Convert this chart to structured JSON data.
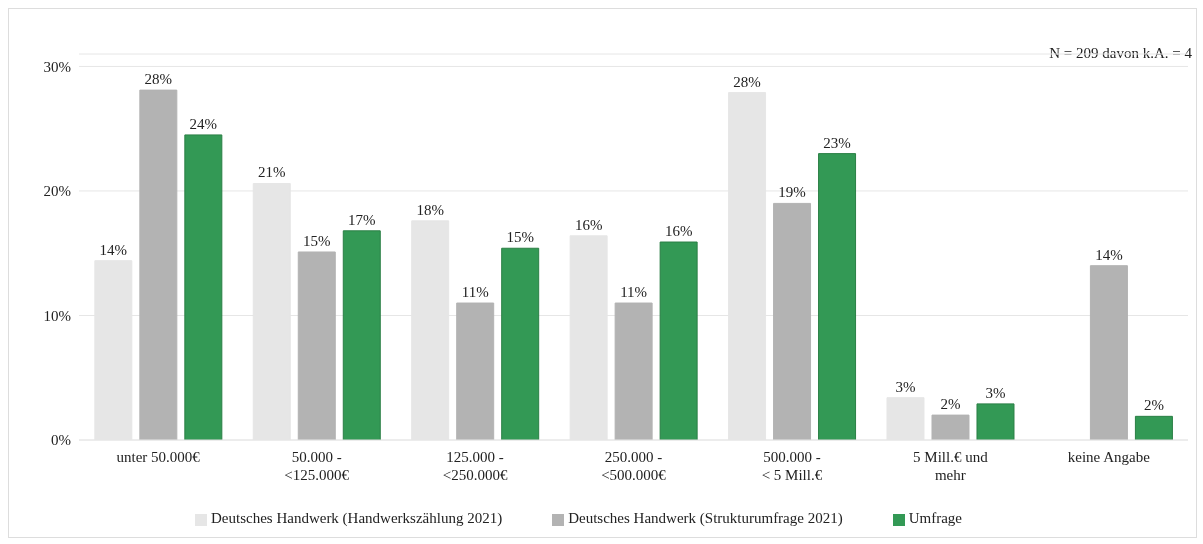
{
  "chart_data": {
    "type": "bar",
    "categories": [
      "unter 50.000€",
      "50.000 -\n<125.000€",
      "125.000 -\n<250.000€",
      "250.000 -\n<500.000€",
      "500.000 -\n< 5 Mill.€",
      "5 Mill.€ und\nmehr",
      "keine Angabe"
    ],
    "series": [
      {
        "name": "Deutsches Handwerk (Handwerkszählung 2021)",
        "color": "#e6e6e6",
        "values": [
          14.4,
          20.6,
          17.6,
          16.4,
          27.9,
          3.4,
          null
        ],
        "value_labels": [
          "14%",
          "21%",
          "18%",
          "16%",
          "28%",
          "3%",
          null
        ]
      },
      {
        "name": "Deutsches Handwerk (Strukturumfrage 2021)",
        "color": "#b3b3b3",
        "values": [
          28.1,
          15.1,
          11.0,
          11.0,
          19.0,
          2.0,
          14.0
        ],
        "value_labels": [
          "28%",
          "15%",
          "11%",
          "11%",
          "19%",
          "2%",
          "14%"
        ]
      },
      {
        "name": "Umfrage",
        "color": "#339955",
        "values": [
          24.5,
          16.8,
          15.4,
          15.9,
          23.0,
          2.9,
          1.9
        ],
        "value_labels": [
          "24%",
          "17%",
          "15%",
          "16%",
          "23%",
          "3%",
          "2%"
        ]
      }
    ],
    "ylim": [
      0,
      31
    ],
    "yticks": [
      {
        "value": 0,
        "label": "0%"
      },
      {
        "value": 10,
        "label": "10%"
      },
      {
        "value": 20,
        "label": "20%"
      },
      {
        "value": 30,
        "label": "30%"
      }
    ],
    "grid": "y",
    "legend": "bottom",
    "annotations": [
      "N = 209 davon k.A. = 4"
    ]
  }
}
